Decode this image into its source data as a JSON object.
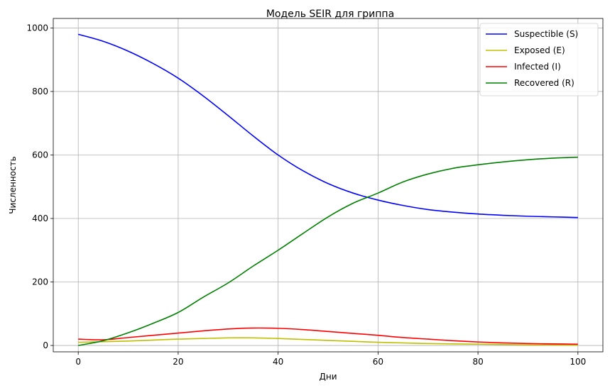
{
  "chart_data": {
    "type": "line",
    "title": "Модель SEIR для гриппа",
    "xlabel": "Дни",
    "ylabel": "Численность",
    "xlim": [
      -5,
      105
    ],
    "ylim": [
      -20,
      1030
    ],
    "xticks": [
      0,
      20,
      40,
      60,
      80,
      100
    ],
    "yticks": [
      0,
      200,
      400,
      600,
      800,
      1000
    ],
    "grid": true,
    "legend_position": "top-right",
    "x": [
      0,
      5,
      10,
      15,
      20,
      25,
      30,
      35,
      40,
      45,
      50,
      55,
      60,
      65,
      70,
      75,
      80,
      85,
      90,
      95,
      100
    ],
    "series": [
      {
        "name": "Suspectible (S)",
        "color": "#0000ff",
        "values": [
          980,
          958,
          927,
          888,
          842,
          786,
          724,
          660,
          600,
          550,
          510,
          480,
          458,
          441,
          428,
          420,
          414,
          410,
          407,
          405,
          403
        ]
      },
      {
        "name": "Exposed (E)",
        "color": "#bfbf00",
        "values": [
          10,
          12,
          14,
          17,
          20,
          22,
          24,
          24,
          22,
          19,
          16,
          13,
          10,
          8,
          6,
          5,
          4,
          3,
          2,
          2,
          1
        ]
      },
      {
        "name": "Infected (I)",
        "color": "#ff0000",
        "values": [
          20,
          18,
          25,
          32,
          39,
          46,
          52,
          55,
          54,
          50,
          44,
          38,
          32,
          25,
          20,
          15,
          11,
          8,
          6,
          5,
          4
        ]
      },
      {
        "name": "Recovered (R)",
        "color": "#008000",
        "values": [
          0,
          15,
          40,
          70,
          104,
          152,
          197,
          250,
          300,
          353,
          405,
          448,
          480,
          515,
          540,
          558,
          569,
          578,
          585,
          590,
          593
        ]
      }
    ]
  }
}
